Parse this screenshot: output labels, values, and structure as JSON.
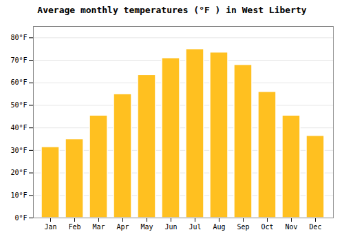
{
  "chart_data": {
    "type": "bar",
    "title": "Average monthly temperatures (°F ) in West Liberty",
    "categories": [
      "Jan",
      "Feb",
      "Mar",
      "Apr",
      "May",
      "Jun",
      "Jul",
      "Aug",
      "Sep",
      "Oct",
      "Nov",
      "Dec"
    ],
    "values": [
      31.5,
      35.0,
      45.5,
      55.0,
      63.5,
      71.0,
      75.0,
      73.5,
      68.0,
      56.0,
      45.5,
      36.5
    ],
    "color": "#FFC020",
    "ylim": [
      0,
      85
    ],
    "yticks": [
      {
        "value": 0,
        "label": "0°F"
      },
      {
        "value": 10,
        "label": "10°F"
      },
      {
        "value": 20,
        "label": "20°F"
      },
      {
        "value": 30,
        "label": "30°F"
      },
      {
        "value": 40,
        "label": "40°F"
      },
      {
        "value": 50,
        "label": "50°F"
      },
      {
        "value": 60,
        "label": "60°F"
      },
      {
        "value": 70,
        "label": "70°F"
      },
      {
        "value": 80,
        "label": "80°F"
      }
    ],
    "grid": true
  }
}
